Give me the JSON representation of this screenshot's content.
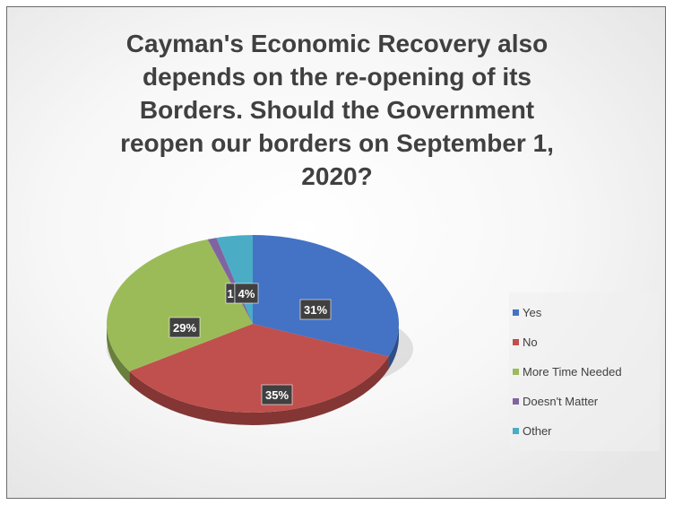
{
  "title_lines": [
    "Cayman's Economic Recovery also",
    "depends on the re-opening of its",
    "Borders. Should the Government",
    "reopen our borders on September 1,",
    "2020?"
  ],
  "chart_data": {
    "type": "pie",
    "title": "Cayman's Economic Recovery also depends on the re-opening of its Borders. Should the Government reopen our borders on September 1, 2020?",
    "legend_position": "right",
    "slices": [
      {
        "name": "Yes",
        "value": 31,
        "color": "#4472c4",
        "label": "31%"
      },
      {
        "name": "No",
        "value": 35,
        "color": "#c0504d",
        "label": "35%"
      },
      {
        "name": "More Time Needed",
        "value": 29,
        "color": "#9bbb59",
        "label": "29%"
      },
      {
        "name": "Doesn't Matter",
        "value": 1,
        "color": "#8064a2",
        "label": "1"
      },
      {
        "name": "Other",
        "value": 4,
        "color": "#4bacc6",
        "label": "4%"
      }
    ]
  }
}
